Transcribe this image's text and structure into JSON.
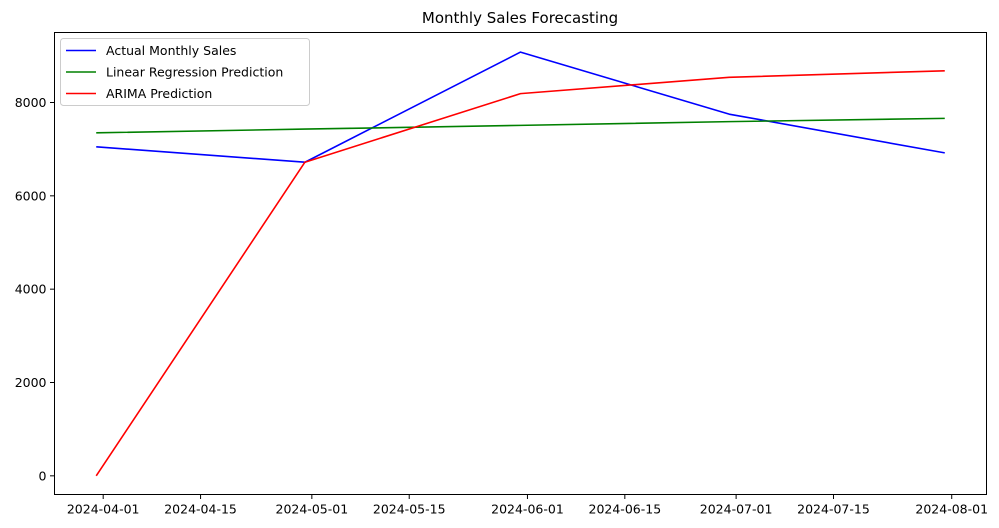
{
  "chart_data": {
    "type": "line",
    "title": "Monthly Sales Forecasting",
    "xlabel": "",
    "ylabel": "",
    "x": [
      "2024-03-31",
      "2024-04-30",
      "2024-05-31",
      "2024-06-30",
      "2024-07-31"
    ],
    "xlim": [
      "2024-03-25",
      "2024-08-06"
    ],
    "ylim": [
      -400,
      9500
    ],
    "x_ticks": [
      "2024-04-01",
      "2024-04-15",
      "2024-05-01",
      "2024-05-15",
      "2024-06-01",
      "2024-06-15",
      "2024-07-01",
      "2024-07-15",
      "2024-08-01"
    ],
    "y_ticks": [
      0,
      2000,
      4000,
      6000,
      8000
    ],
    "y_tick_labels": [
      "0",
      "2000",
      "4000",
      "6000",
      "8000"
    ],
    "grid": false,
    "legend_position": "top-left",
    "series": [
      {
        "name": "Actual Monthly Sales",
        "color": "#0000ff",
        "values": [
          7050,
          6720,
          9080,
          7750,
          6920
        ]
      },
      {
        "name": "Linear Regression Prediction",
        "color": "#008000",
        "values": [
          7350,
          7430,
          7510,
          7590,
          7660
        ]
      },
      {
        "name": "ARIMA Prediction",
        "color": "#ff0000",
        "values": [
          0,
          6720,
          8190,
          8540,
          8680
        ]
      }
    ]
  }
}
